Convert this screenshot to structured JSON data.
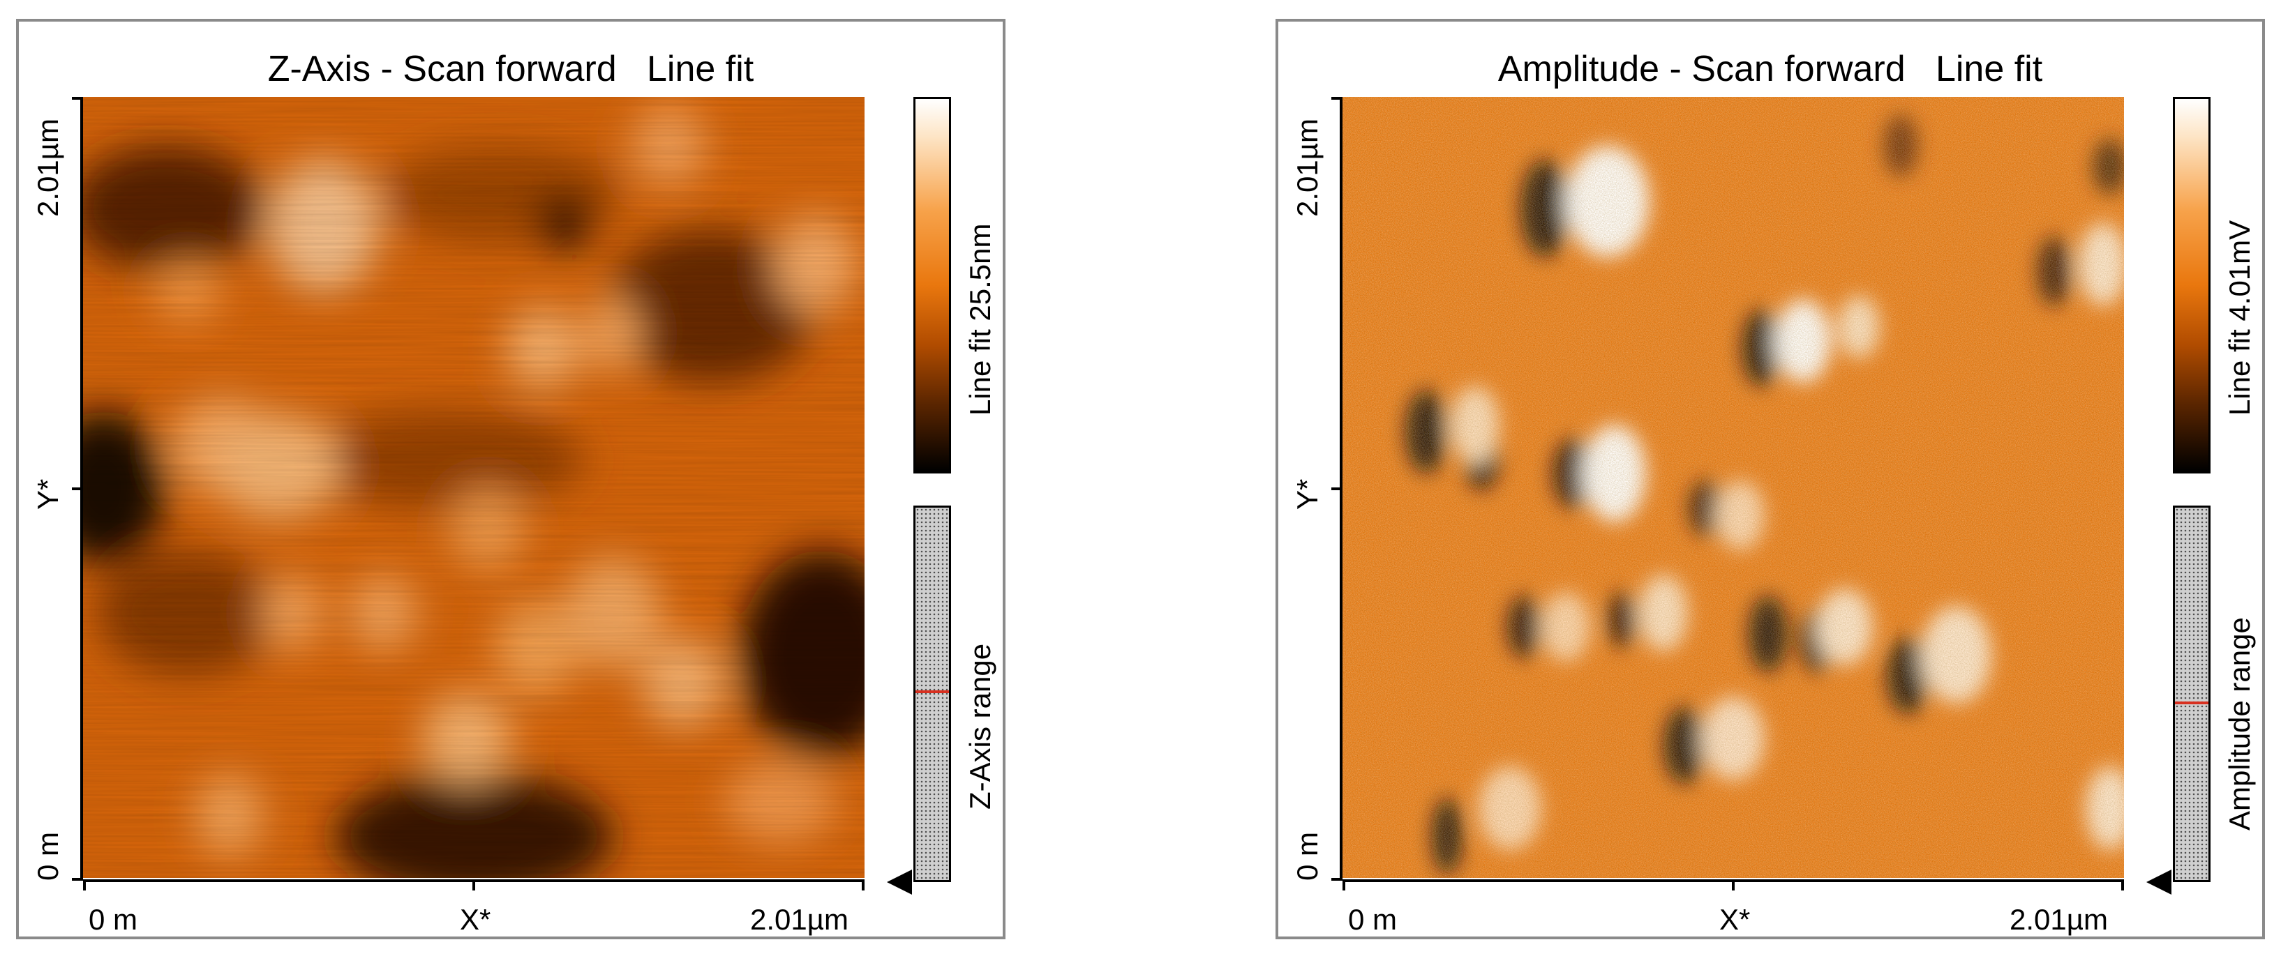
{
  "panels": [
    {
      "title": "Z-Axis - Scan forward   Line fit",
      "x_axis": {
        "start": "0 m",
        "mid": "X*",
        "end": "2.01µm"
      },
      "y_axis": {
        "start": "0 m",
        "mid": "Y*",
        "end": "2.01µm"
      },
      "colorbar_label": "Line fit 25.5nm",
      "range_label": "Z-Axis range",
      "range_marker_fraction": 0.51,
      "colors": {
        "dark": "#000000",
        "mid": "#e9770e",
        "light": "#ffffff"
      }
    },
    {
      "title": "Amplitude - Scan forward   Line fit",
      "x_axis": {
        "start": "0 m",
        "mid": "X*",
        "end": "2.01µm"
      },
      "y_axis": {
        "start": "0 m",
        "mid": "Y*",
        "end": "2.01µm"
      },
      "colorbar_label": "Line fit 4.01mV",
      "range_label": "Amplitude range",
      "range_marker_fraction": 0.48,
      "colors": {
        "dark": "#000000",
        "mid": "#ea7a14",
        "light": "#ffffff"
      }
    }
  ]
}
